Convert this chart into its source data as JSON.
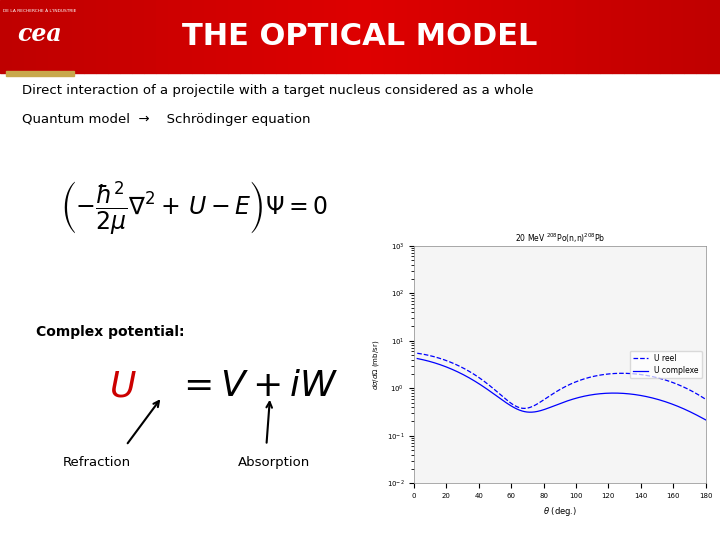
{
  "title": "THE OPTICAL MODEL",
  "slide_bg_color": "#ffffff",
  "title_color": "#ffffff",
  "title_fontsize": 22,
  "body_text_color": "#000000",
  "line1": "Direct interaction of a projectile with a target nucleus considered as a whole",
  "line2": "Quantum model  →    Schrödinger equation",
  "complex_label": "Complex potential:",
  "refraction_label": "Refraction",
  "absorption_label": "Absorption",
  "gold_bar_color": "#c8a84b",
  "header_color_left": "#990000",
  "header_color_mid": "#cc0000",
  "header_color_right": "#990000"
}
